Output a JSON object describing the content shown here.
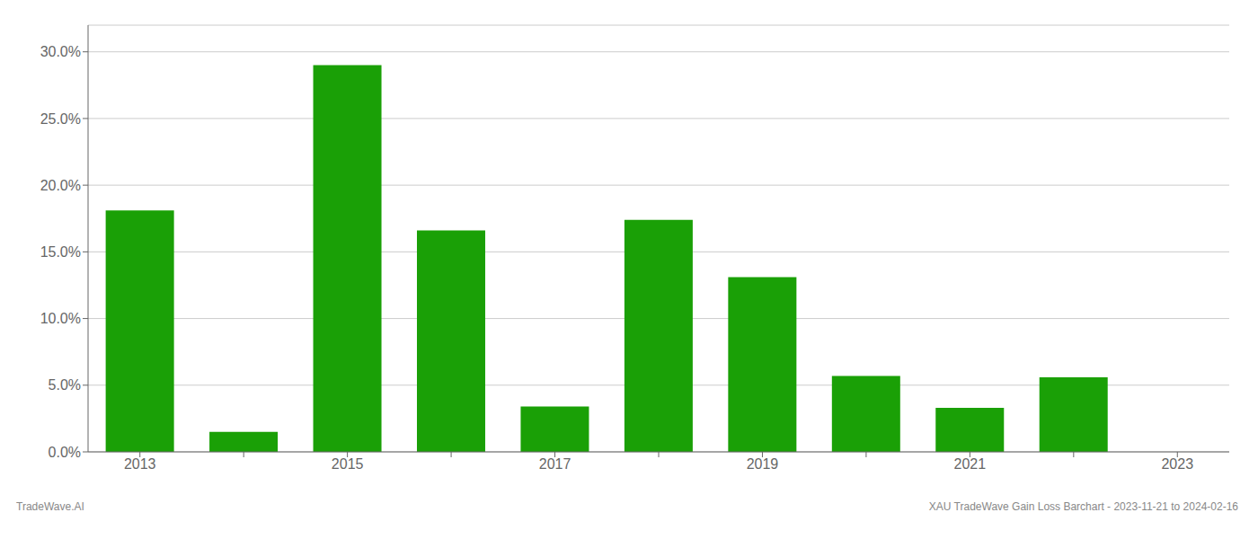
{
  "chart_data": {
    "type": "bar",
    "categories": [
      "2013",
      null,
      "2015",
      null,
      "2017",
      null,
      "2019",
      null,
      "2021",
      null,
      "2023"
    ],
    "values": [
      0.181,
      0.015,
      0.29,
      0.166,
      0.034,
      0.174,
      0.131,
      0.057,
      0.033,
      0.056,
      0.0
    ],
    "color": "#1aa006",
    "ylim": [
      0,
      0.32
    ],
    "yticks": [
      {
        "value": 0.0,
        "label": "0.0%"
      },
      {
        "value": 0.05,
        "label": "5.0%"
      },
      {
        "value": 0.1,
        "label": "10.0%"
      },
      {
        "value": 0.15,
        "label": "15.0%"
      },
      {
        "value": 0.2,
        "label": "20.0%"
      },
      {
        "value": 0.25,
        "label": "25.0%"
      },
      {
        "value": 0.3,
        "label": "30.0%"
      }
    ],
    "grid": true,
    "annotations": [
      "TradeWave.AI",
      "XAU TradeWave Gain Loss Barchart - 2023-11-21 to 2024-02-16"
    ]
  }
}
